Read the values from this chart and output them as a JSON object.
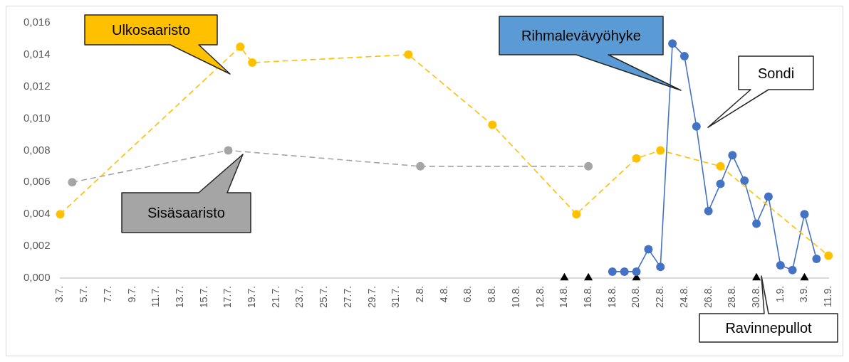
{
  "chart_data": {
    "type": "line",
    "ylim": [
      0,
      0.016
    ],
    "categories": [
      "3.7.",
      null,
      "5.7.",
      null,
      "7.7.",
      null,
      "9.7.",
      null,
      "11.7.",
      null,
      "13.7.",
      null,
      "15.7.",
      null,
      "17.7.",
      null,
      "19.7.",
      null,
      "21.7.",
      null,
      "23.7.",
      null,
      "25.7.",
      null,
      "27.7.",
      null,
      "29.7.",
      null,
      "31.7.",
      null,
      "2.8.",
      null,
      "4.8.",
      null,
      "6.8.",
      null,
      "8.8.",
      null,
      "10.8.",
      null,
      "12.8.",
      null,
      "14.8.",
      null,
      "16.8.",
      null,
      "18.8.",
      null,
      "20.8.",
      null,
      "22.8.",
      null,
      "24.8.",
      null,
      "26.8.",
      null,
      "28.8.",
      null,
      "30.8.",
      null,
      "1.9.",
      null,
      "3.9.",
      null,
      "11.9."
    ],
    "yticks": [
      {
        "value": 0,
        "label": "0,000"
      },
      {
        "value": 0.002,
        "label": "0,002"
      },
      {
        "value": 0.004,
        "label": "0,004"
      },
      {
        "value": 0.006,
        "label": "0,006"
      },
      {
        "value": 0.008,
        "label": "0,008"
      },
      {
        "value": 0.01,
        "label": "0,010"
      },
      {
        "value": 0.012,
        "label": "0,012"
      },
      {
        "value": 0.014,
        "label": "0,014"
      },
      {
        "value": 0.016,
        "label": "0,016"
      }
    ],
    "grid": false,
    "series": [
      {
        "name": "Ulkosaaristo",
        "color": "#ffc000",
        "marker": "circle",
        "line_style": "dashed",
        "values": [
          0.004,
          null,
          null,
          null,
          null,
          null,
          null,
          null,
          null,
          null,
          null,
          null,
          null,
          null,
          null,
          0.0145,
          0.0135,
          null,
          null,
          null,
          null,
          null,
          null,
          null,
          null,
          null,
          null,
          null,
          null,
          0.014,
          null,
          null,
          null,
          null,
          null,
          null,
          0.0096,
          null,
          null,
          null,
          null,
          null,
          null,
          0.004,
          null,
          null,
          null,
          null,
          0.0075,
          null,
          0.008,
          null,
          null,
          null,
          null,
          0.007,
          null,
          null,
          null,
          null,
          null,
          null,
          null,
          null,
          0.0014
        ]
      },
      {
        "name": "Sisäsaaristo",
        "color": "#a5a5a5",
        "marker": "circle",
        "line_style": "dashed",
        "values": [
          null,
          0.006,
          null,
          null,
          null,
          null,
          null,
          null,
          null,
          null,
          null,
          null,
          null,
          null,
          0.008,
          null,
          null,
          null,
          null,
          null,
          null,
          null,
          null,
          null,
          null,
          null,
          null,
          null,
          null,
          null,
          0.007,
          null,
          null,
          null,
          null,
          null,
          null,
          null,
          null,
          null,
          null,
          null,
          null,
          null,
          0.007,
          null,
          null,
          null,
          null,
          null,
          null,
          null,
          null,
          null,
          null,
          null,
          null,
          null,
          null,
          null,
          null,
          null,
          null,
          null,
          null
        ]
      },
      {
        "name": "Rihmalevävyöhyke",
        "color": "#4472c4",
        "marker": "circle",
        "line_style": "solid",
        "values": [
          null,
          null,
          null,
          null,
          null,
          null,
          null,
          null,
          null,
          null,
          null,
          null,
          null,
          null,
          null,
          null,
          null,
          null,
          null,
          null,
          null,
          null,
          null,
          null,
          null,
          null,
          null,
          null,
          null,
          null,
          null,
          null,
          null,
          null,
          null,
          null,
          null,
          null,
          null,
          null,
          null,
          null,
          null,
          null,
          null,
          null,
          0.0004,
          0.0004,
          0.0004,
          0.0018,
          0.0007,
          0.0147,
          0.0139,
          0.0095,
          0.0042,
          0.0059,
          0.0077,
          0.0061,
          0.0034,
          0.0051,
          0.0008,
          0.0005,
          0.004,
          0.0012,
          null
        ]
      },
      {
        "name": "Ravinnepullot",
        "type": "scatter",
        "color": "#000000",
        "marker": "triangle",
        "values": [
          null,
          null,
          null,
          null,
          null,
          null,
          null,
          null,
          null,
          null,
          null,
          null,
          null,
          null,
          null,
          null,
          null,
          null,
          null,
          null,
          null,
          null,
          null,
          null,
          null,
          null,
          null,
          null,
          null,
          null,
          null,
          null,
          null,
          null,
          null,
          null,
          null,
          null,
          null,
          null,
          null,
          null,
          0,
          null,
          0,
          null,
          null,
          null,
          0,
          null,
          null,
          null,
          null,
          null,
          null,
          null,
          null,
          null,
          0,
          null,
          null,
          null,
          0,
          null,
          null
        ]
      }
    ],
    "annotations": [
      "Sondi"
    ]
  }
}
